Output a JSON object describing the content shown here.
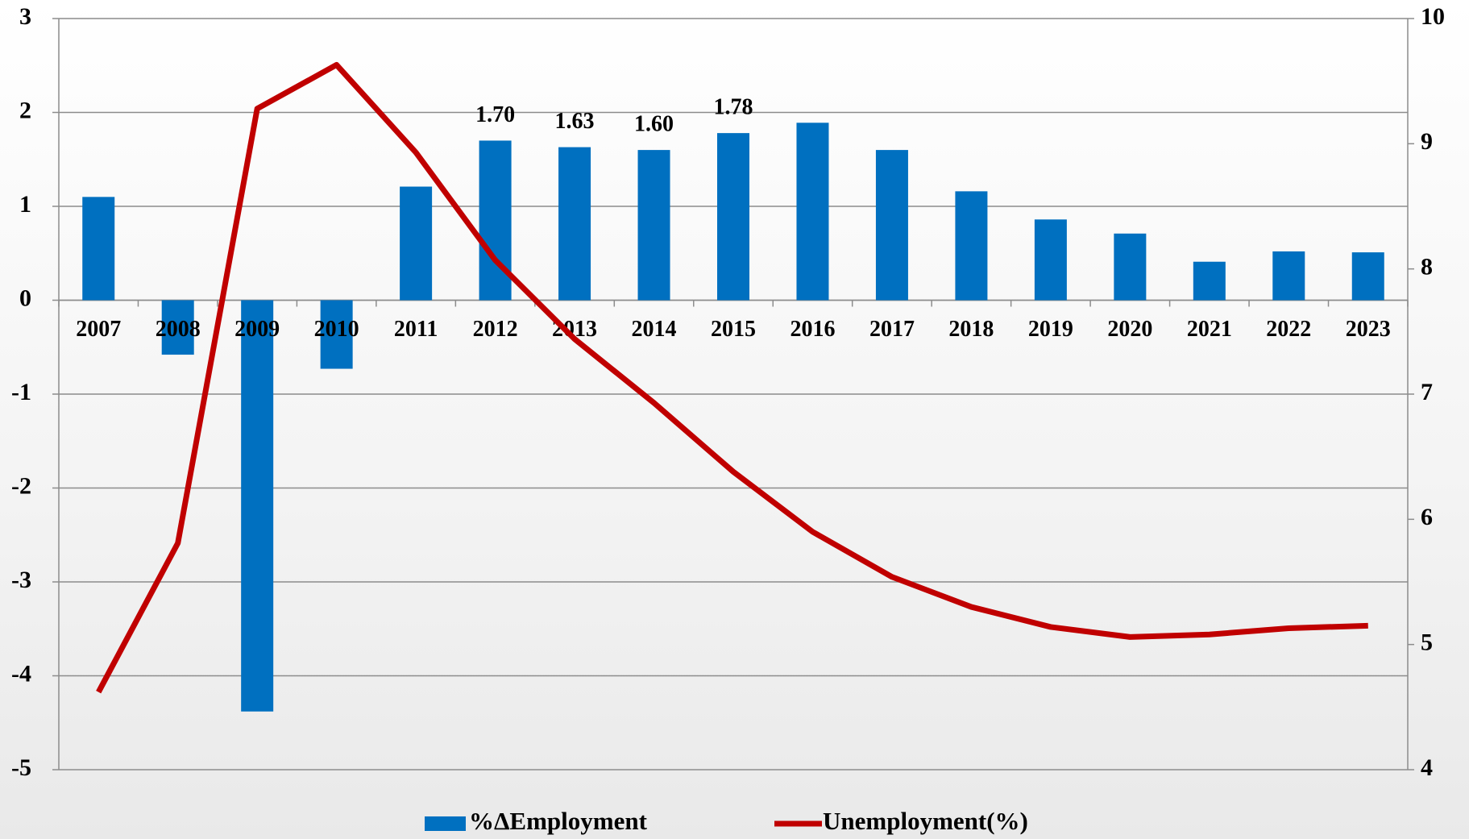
{
  "chart_data": {
    "type": "bar-line",
    "categories": [
      "2007",
      "2008",
      "2009",
      "2010",
      "2011",
      "2012",
      "2013",
      "2014",
      "2015",
      "2016",
      "2017",
      "2018",
      "2019",
      "2020",
      "2021",
      "2022",
      "2023"
    ],
    "series": [
      {
        "name": "%ΔEmployment",
        "type": "bar",
        "color": "#0070c0",
        "values": [
          1.1,
          -0.58,
          -4.38,
          -0.73,
          1.21,
          1.7,
          1.63,
          1.6,
          1.78,
          1.89,
          1.6,
          1.16,
          0.86,
          0.71,
          0.41,
          0.52,
          0.51
        ],
        "value_labels": [
          null,
          null,
          null,
          null,
          null,
          "1.70",
          "1.63",
          "1.60",
          "1.78",
          null,
          null,
          null,
          null,
          null,
          null,
          null,
          null
        ]
      },
      {
        "name": "Unemployment(%)",
        "type": "line",
        "color": "#c00000",
        "axis": "y2",
        "values": [
          4.62,
          5.81,
          9.28,
          9.63,
          8.93,
          8.07,
          7.44,
          6.93,
          6.38,
          5.9,
          5.54,
          5.3,
          5.14,
          5.06,
          5.08,
          5.13,
          5.15
        ]
      }
    ],
    "ylim": [
      -5,
      3
    ],
    "yticks": [
      -5,
      -4,
      -3,
      -2,
      -1,
      0,
      1,
      2,
      3
    ],
    "y2lim": [
      4,
      10
    ],
    "y2ticks": [
      4,
      5,
      6,
      7,
      8,
      9,
      10
    ],
    "grid": true,
    "legend": "bottom"
  }
}
